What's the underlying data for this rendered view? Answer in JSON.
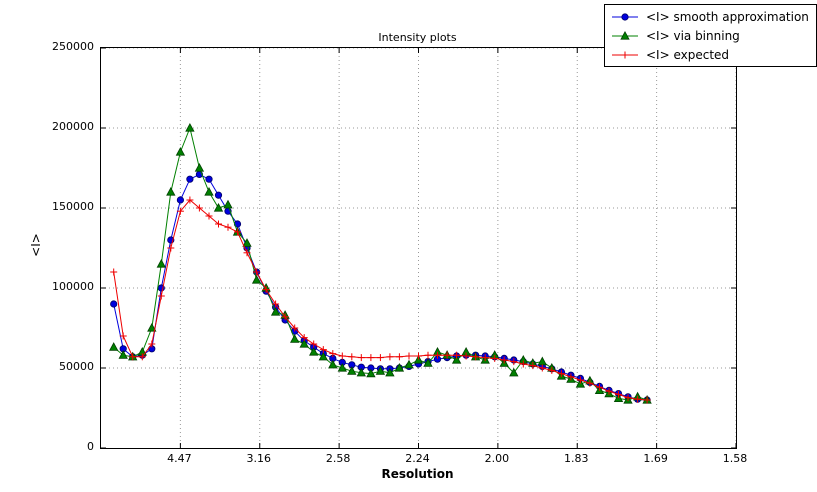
{
  "chart_data": {
    "type": "line",
    "title": "Intensity plots",
    "xlabel": "Resolution",
    "ylabel": "<I>",
    "grid": "dotted",
    "legend_position": "top-right",
    "note": "x values are in 1/d^2; x tick labels show resolution d corresponding to each 1/d^2 position",
    "style": {
      "background": "#ffffff",
      "frame_color": "#000000",
      "grid_color": "#999999"
    },
    "x_axis": {
      "min": 0.0,
      "max": 0.4,
      "unit": "1/d^2",
      "ticks": [
        {
          "label": "4.47",
          "value": 0.05
        },
        {
          "label": "3.16",
          "value": 0.1
        },
        {
          "label": "2.58",
          "value": 0.15
        },
        {
          "label": "2.24",
          "value": 0.2
        },
        {
          "label": "2.00",
          "value": 0.25
        },
        {
          "label": "1.83",
          "value": 0.3
        },
        {
          "label": "1.69",
          "value": 0.35
        },
        {
          "label": "1.58",
          "value": 0.4
        }
      ]
    },
    "y_axis": {
      "min": 0,
      "max": 250000,
      "ticks": [
        {
          "label": "0",
          "value": 0
        },
        {
          "label": "50000",
          "value": 50000
        },
        {
          "label": "100000",
          "value": 100000
        },
        {
          "label": "150000",
          "value": 150000
        },
        {
          "label": "200000",
          "value": 200000
        },
        {
          "label": "250000",
          "value": 250000
        }
      ]
    },
    "x": [
      0.008,
      0.014,
      0.02,
      0.026,
      0.032,
      0.038,
      0.044,
      0.05,
      0.056,
      0.062,
      0.068,
      0.074,
      0.08,
      0.086,
      0.092,
      0.098,
      0.104,
      0.11,
      0.116,
      0.122,
      0.128,
      0.134,
      0.14,
      0.146,
      0.152,
      0.158,
      0.164,
      0.17,
      0.176,
      0.182,
      0.188,
      0.194,
      0.2,
      0.206,
      0.212,
      0.218,
      0.224,
      0.23,
      0.236,
      0.242,
      0.248,
      0.254,
      0.26,
      0.266,
      0.272,
      0.278,
      0.284,
      0.29,
      0.296,
      0.302,
      0.308,
      0.314,
      0.32,
      0.326,
      0.332,
      0.338,
      0.344
    ],
    "series": [
      {
        "id": "smooth-approximation",
        "name": "<I> smooth approximation",
        "color": "#0000dd",
        "marker_edge": "#000066",
        "marker": "circle",
        "values": [
          90000,
          62000,
          57000,
          58000,
          62000,
          100000,
          130000,
          155000,
          168000,
          171000,
          168000,
          158000,
          148000,
          140000,
          125000,
          110000,
          98000,
          88000,
          80000,
          73000,
          67000,
          63000,
          59000,
          56000,
          53500,
          52000,
          50500,
          50000,
          49500,
          49500,
          50000,
          51000,
          52500,
          54000,
          55500,
          56500,
          57500,
          58000,
          58000,
          57500,
          57000,
          56000,
          55000,
          54000,
          52500,
          51000,
          49500,
          47500,
          45500,
          43500,
          41000,
          38500,
          36000,
          34000,
          32000,
          30500,
          30000
        ]
      },
      {
        "id": "via-binning",
        "name": "<I> via binning",
        "color": "#008000",
        "marker_edge": "#004000",
        "marker": "triangle",
        "values": [
          63000,
          58000,
          57000,
          60000,
          75000,
          115000,
          160000,
          185000,
          200000,
          175000,
          160000,
          150000,
          152000,
          135000,
          128000,
          105000,
          100000,
          85000,
          83000,
          68000,
          65000,
          60000,
          57000,
          52000,
          50000,
          48000,
          47000,
          46500,
          48000,
          47000,
          50000,
          52000,
          55000,
          53000,
          60000,
          58000,
          55000,
          60000,
          57000,
          55000,
          58000,
          53000,
          47000,
          55000,
          53000,
          54000,
          50000,
          45000,
          43000,
          40000,
          42000,
          36000,
          34000,
          31000,
          30000,
          32000,
          30000
        ]
      },
      {
        "id": "expected",
        "name": "<I> expected",
        "color": "#ee0000",
        "marker_edge": "#aa0000",
        "marker": "plus",
        "values": [
          110000,
          70000,
          57000,
          57000,
          65000,
          95000,
          125000,
          148000,
          155000,
          150000,
          145000,
          140000,
          138000,
          135000,
          122000,
          110000,
          99000,
          90000,
          82000,
          75000,
          69000,
          65000,
          61500,
          59000,
          57500,
          57000,
          56500,
          56500,
          56500,
          57000,
          57000,
          57500,
          57500,
          58000,
          58000,
          58000,
          58000,
          57500,
          57000,
          56500,
          56000,
          55000,
          54000,
          52500,
          51500,
          50000,
          48500,
          46500,
          44500,
          42500,
          40500,
          38000,
          35500,
          33500,
          31500,
          30500,
          30000
        ]
      }
    ]
  }
}
